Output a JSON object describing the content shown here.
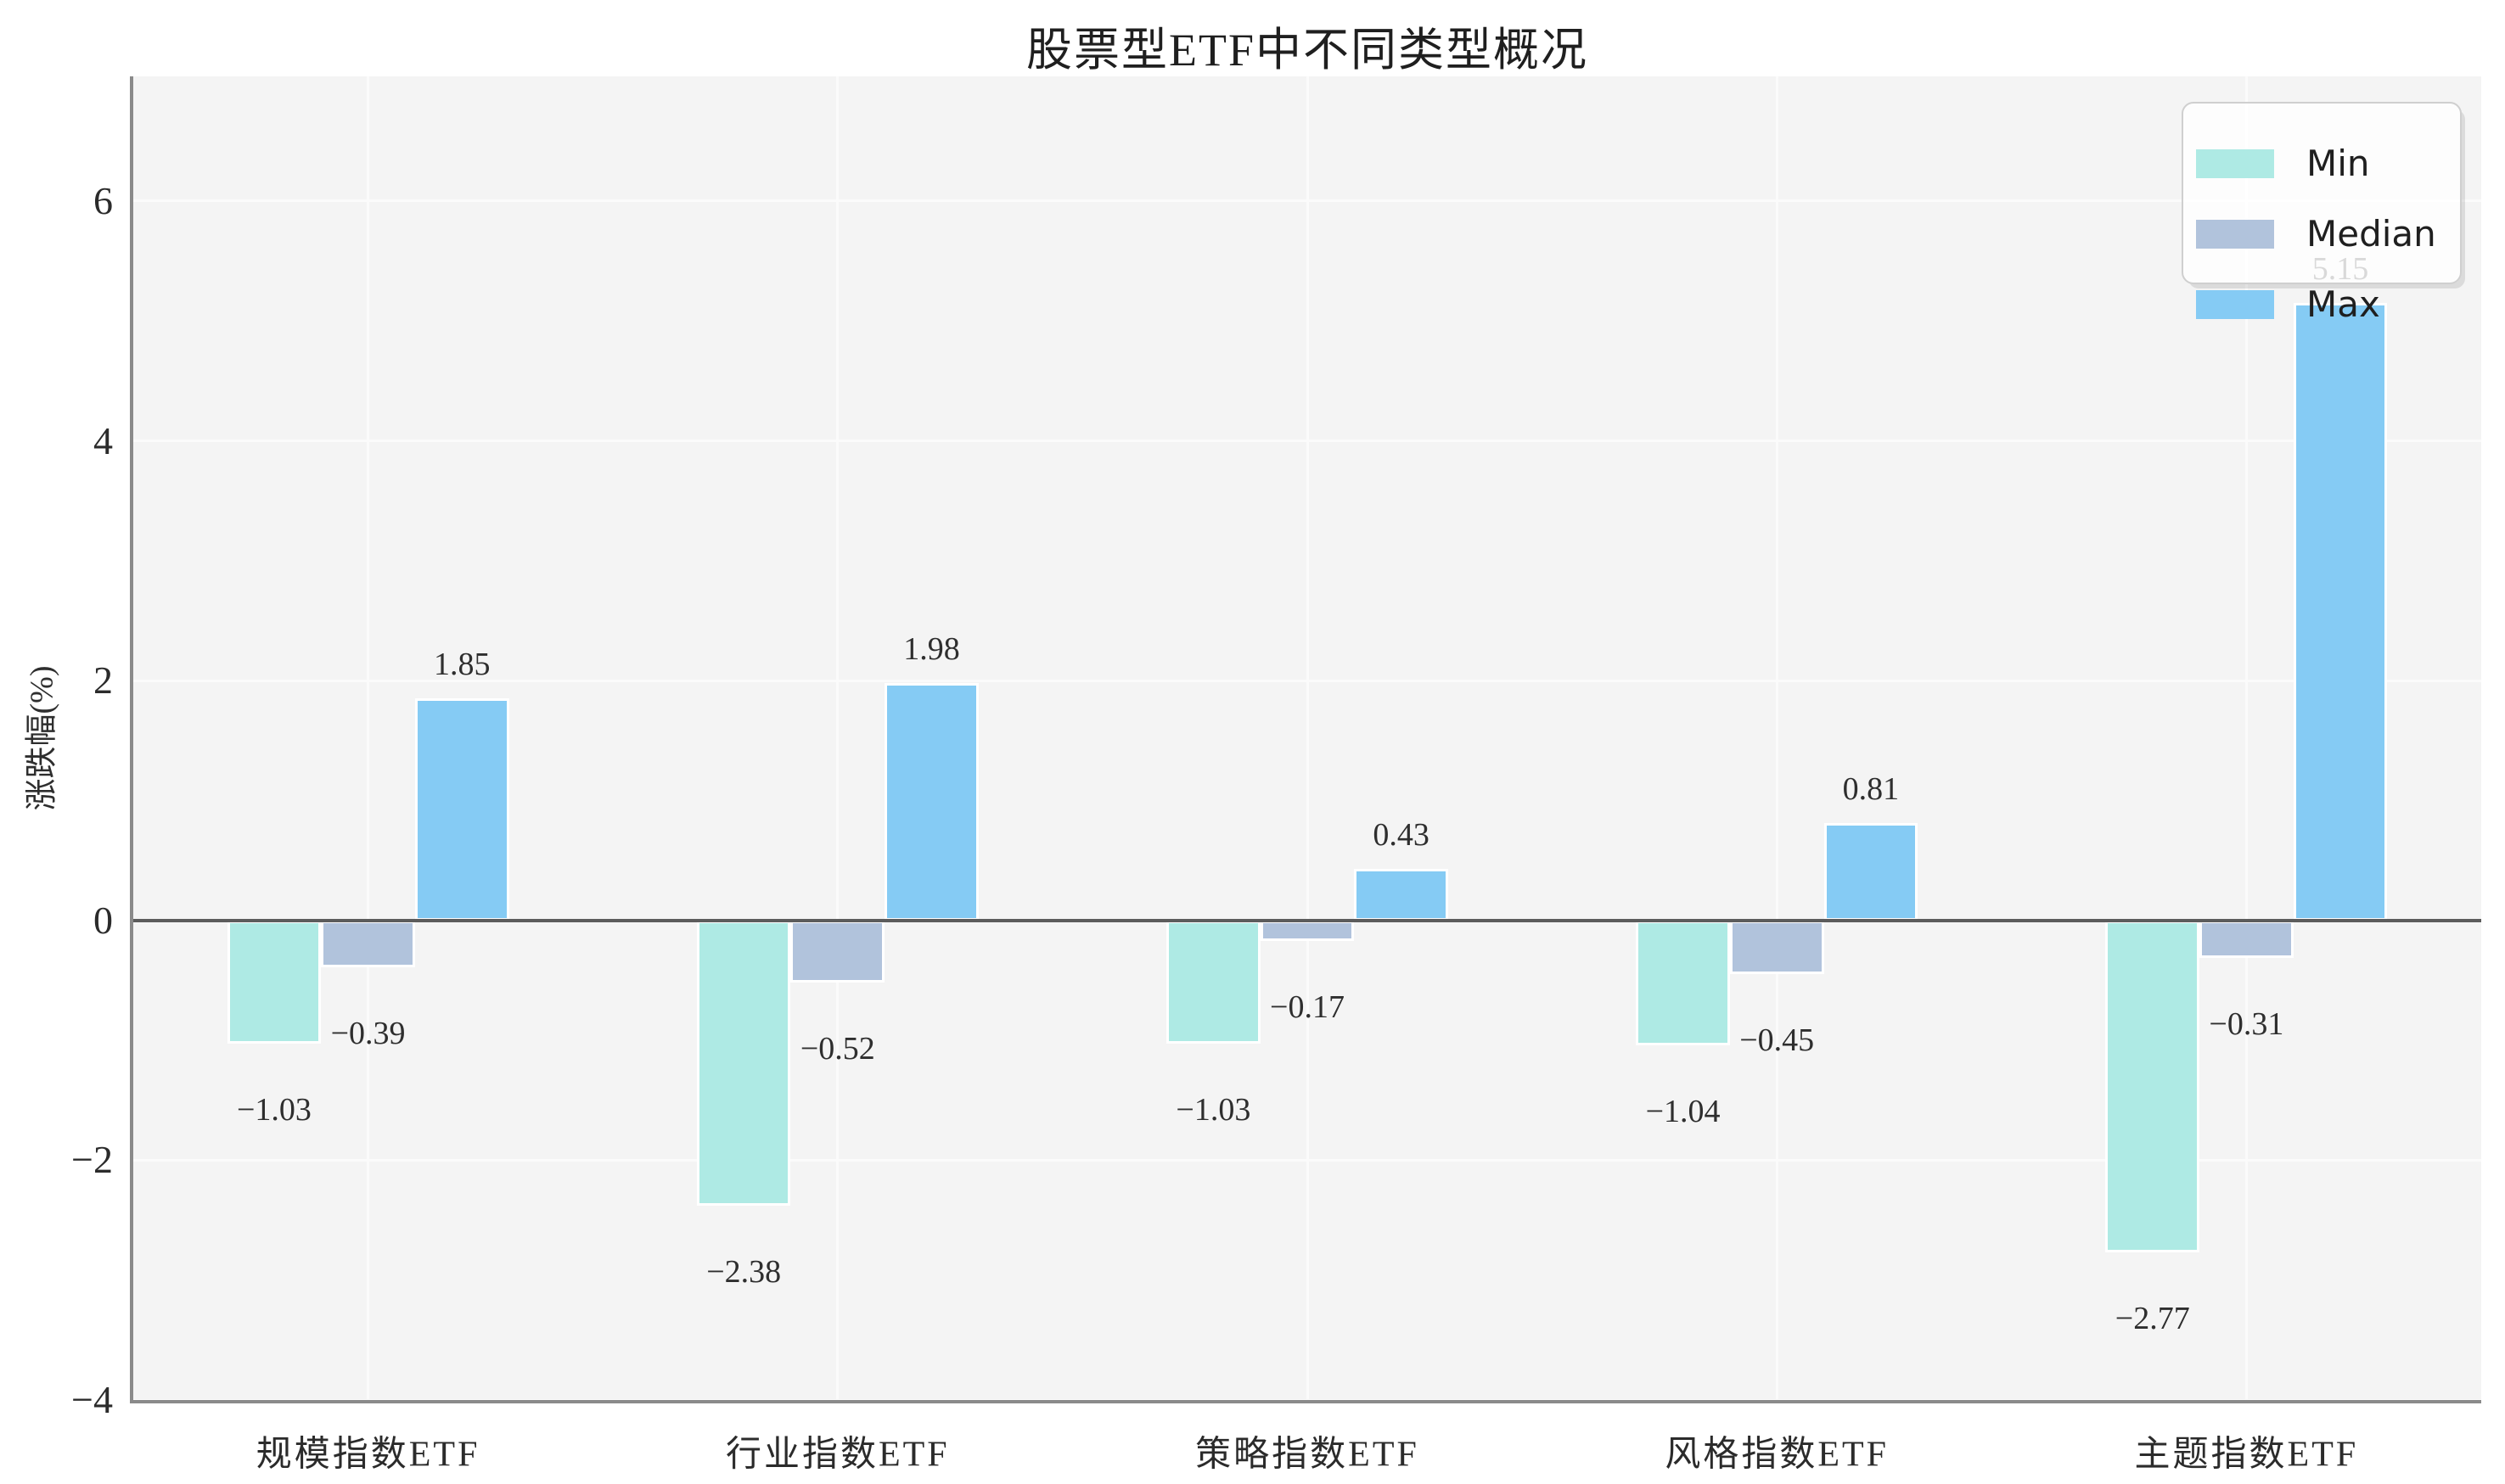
{
  "chart_data": {
    "type": "bar",
    "title": "股票型ETF中不同类型概况",
    "ylabel": "涨跌幅(%)",
    "categories": [
      "规模指数ETF",
      "行业指数ETF",
      "策略指数ETF",
      "风格指数ETF",
      "主题指数ETF"
    ],
    "series": [
      {
        "name": "Min",
        "color": "#aeeae4",
        "values": [
          -1.03,
          -2.38,
          -1.03,
          -1.04,
          -2.77
        ],
        "labels": [
          "−1.03",
          "−2.38",
          "−1.03",
          "−1.04",
          "−2.77"
        ]
      },
      {
        "name": "Median",
        "color": "#b1c3dc",
        "values": [
          -0.39,
          -0.52,
          -0.17,
          -0.45,
          -0.31
        ],
        "labels": [
          "−0.39",
          "−0.52",
          "−0.17",
          "−0.45",
          "−0.31"
        ]
      },
      {
        "name": "Max",
        "color": "#85cbf4",
        "values": [
          1.85,
          1.98,
          0.43,
          0.81,
          5.15
        ],
        "labels": [
          "1.85",
          "1.98",
          "0.43",
          "0.81",
          "5.15"
        ]
      }
    ],
    "yticks": [
      {
        "value": -4,
        "label": "−4"
      },
      {
        "value": -2,
        "label": "−2"
      },
      {
        "value": 0,
        "label": "0"
      },
      {
        "value": 2,
        "label": "2"
      },
      {
        "value": 4,
        "label": "4"
      },
      {
        "value": 6,
        "label": "6"
      }
    ],
    "ylim": [
      -4,
      7.04
    ],
    "grid": true,
    "legend": {
      "position": "upper-right",
      "items": [
        "Min",
        "Median",
        "Max"
      ]
    }
  },
  "style": {
    "figure_bg": "#ffffff",
    "plot_bg": "#f4f4f4",
    "grid_color": "#fbfbfb",
    "spine_color": "#8a8a8a",
    "zero_line_color": "#5c5c5c",
    "text_color": "#2b2b2b",
    "legend_bg": "rgba(255,255,255,0.82)",
    "legend_border": "#cfcfcf"
  }
}
